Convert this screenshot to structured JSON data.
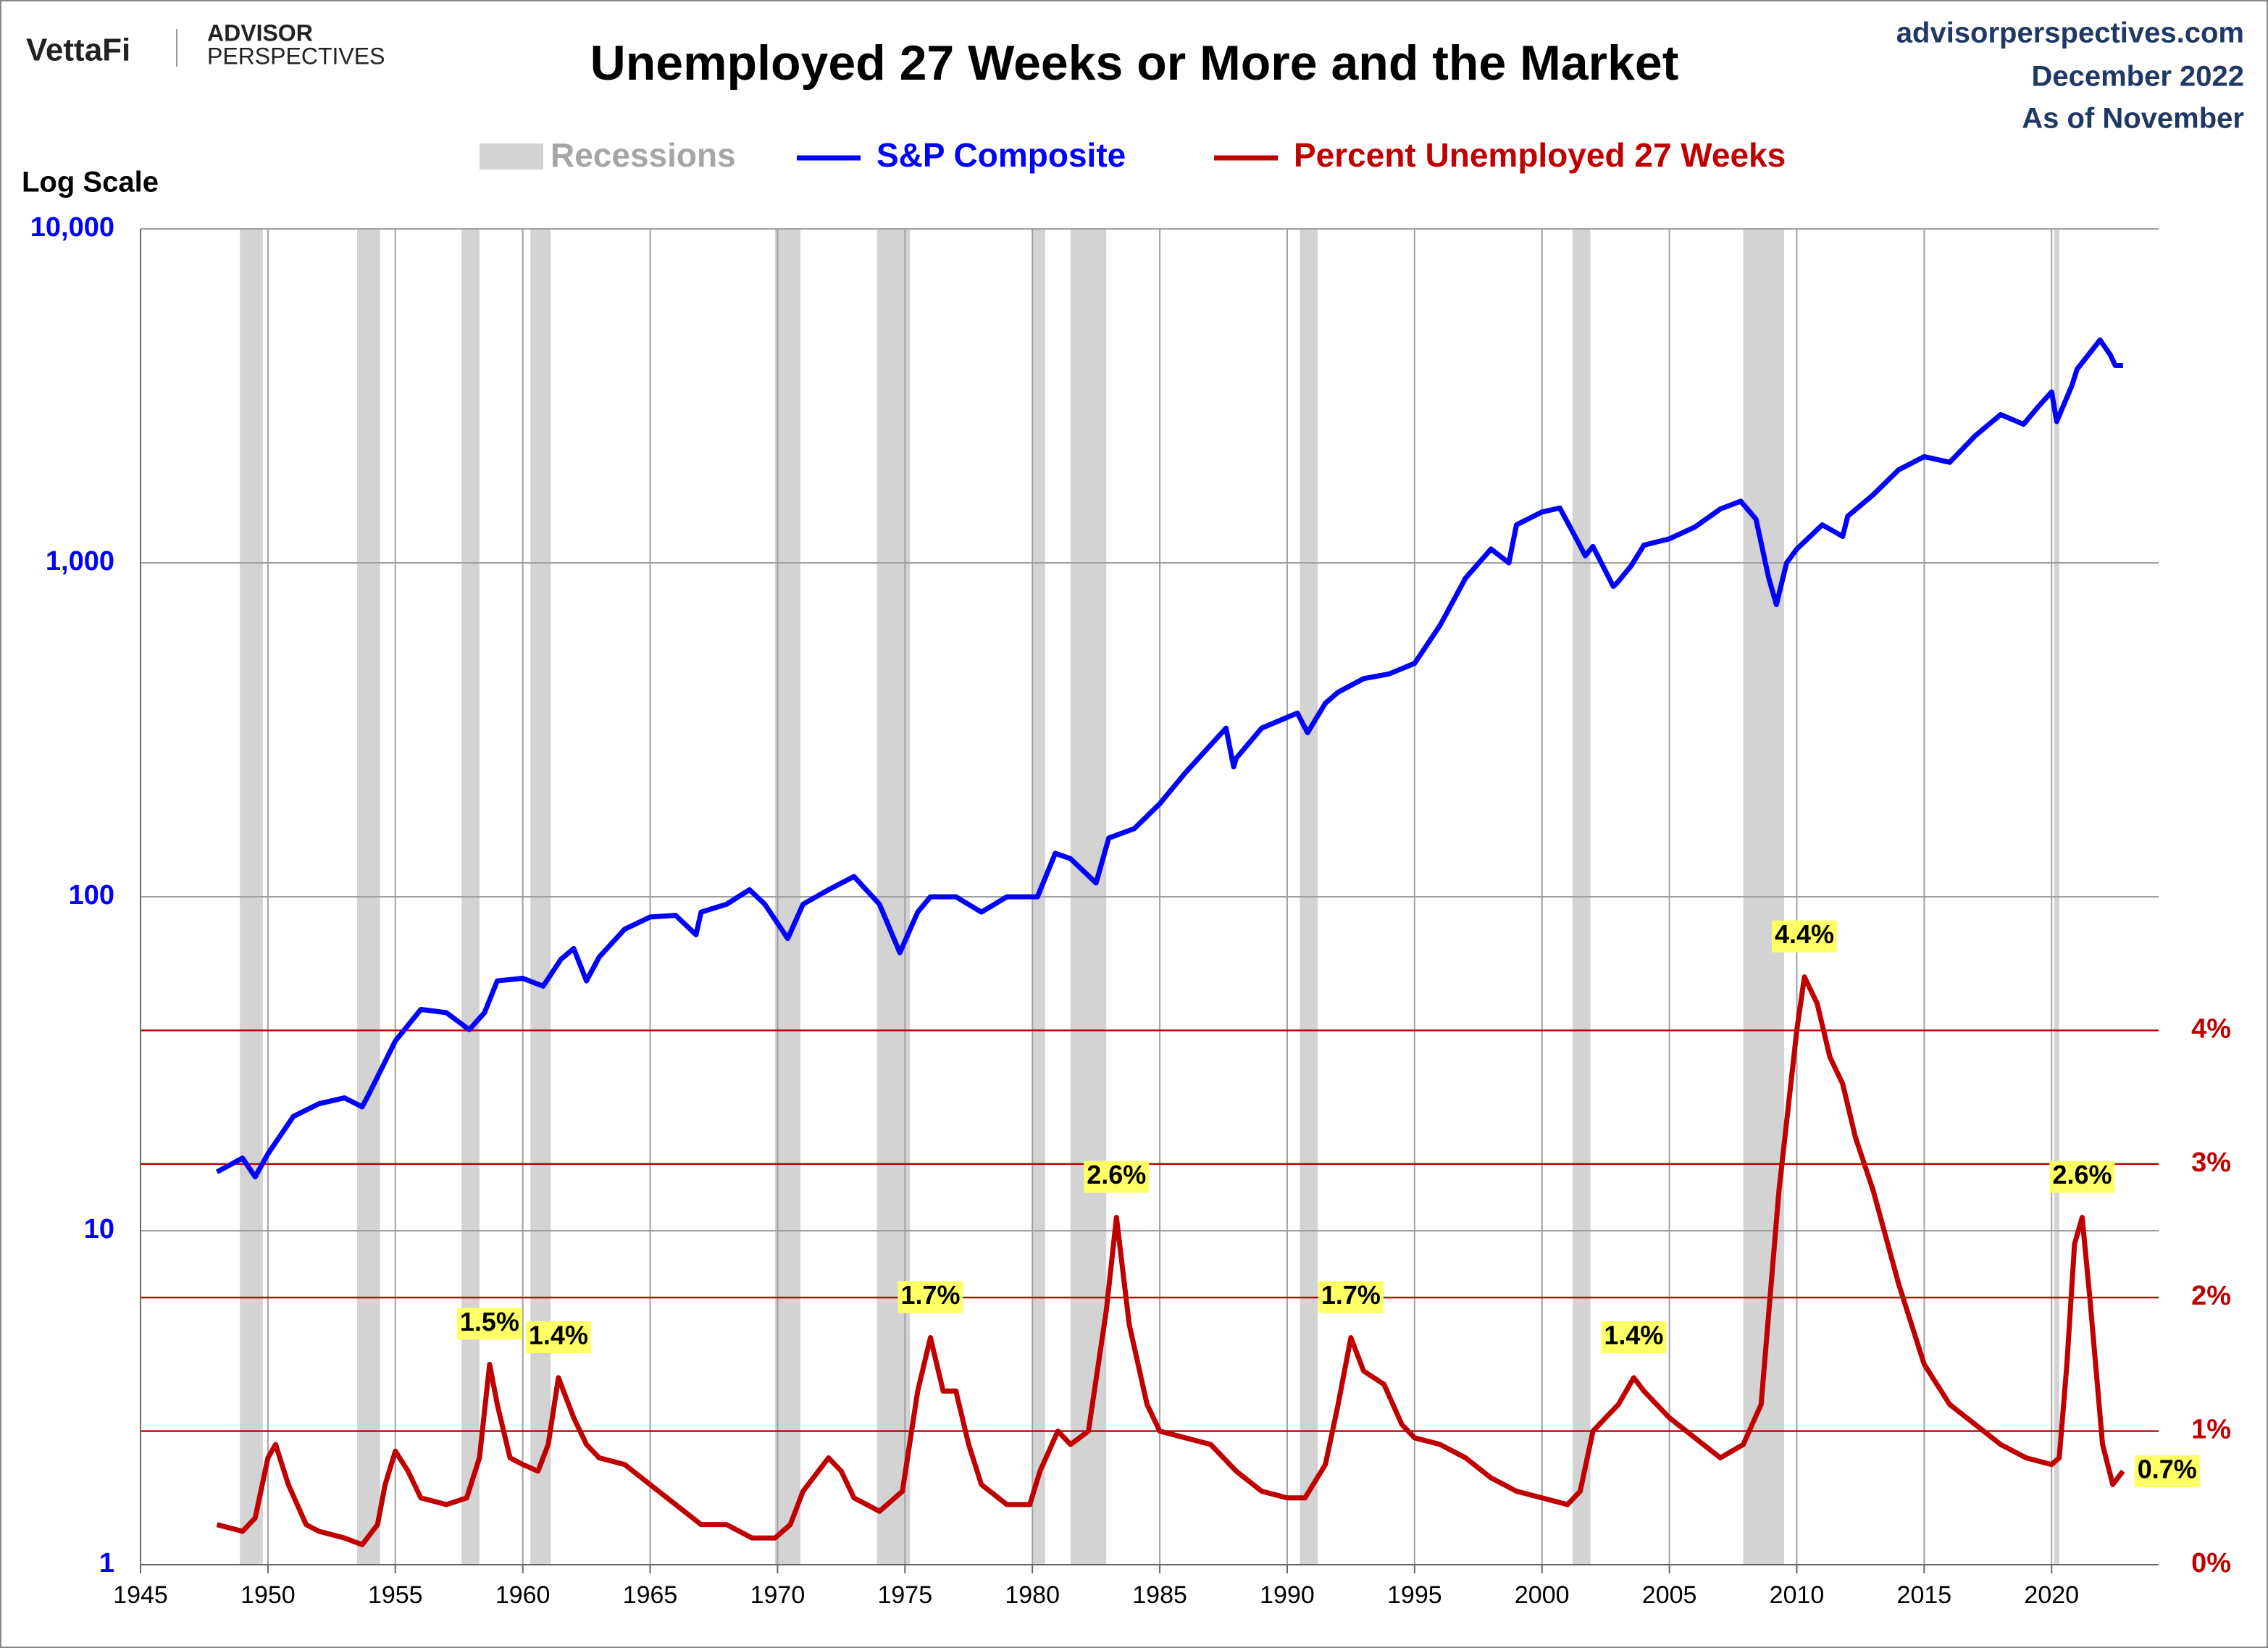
{
  "header": {
    "brand": "VettaFi",
    "brand2_top": "ADVISOR",
    "brand2_bottom": "PERSPECTIVES",
    "site": "advisorperspectives.com",
    "date": "December 2022",
    "as_of": "As of November"
  },
  "chart_data": {
    "type": "line",
    "title": "Unemployed 27 Weeks or More and the Market",
    "y_axis_label": "Log Scale",
    "log_scale": true,
    "grid": true,
    "xlim": [
      1945,
      2024.2
    ],
    "xticks": [
      1945,
      1950,
      1955,
      1960,
      1965,
      1970,
      1975,
      1980,
      1985,
      1990,
      1995,
      2000,
      2005,
      2010,
      2015,
      2020
    ],
    "ylim": [
      1,
      10000
    ],
    "yticks": [
      1,
      10,
      100,
      {
        "value": 1000,
        "label": "1,000"
      },
      {
        "value": 10000,
        "label": "10,000"
      }
    ],
    "y2lim": [
      0,
      10
    ],
    "y2ticks": [
      {
        "value": 0,
        "label": "0%"
      },
      {
        "value": 1,
        "label": "1%"
      },
      {
        "value": 2,
        "label": "2%"
      },
      {
        "value": 3,
        "label": "3%"
      },
      {
        "value": 4,
        "label": "4%"
      }
    ],
    "recessions": {
      "name": "Recessions",
      "color": "#d3d3d3",
      "periods": [
        [
          1948.9,
          1949.8
        ],
        [
          1953.5,
          1954.4
        ],
        [
          1957.6,
          1958.3
        ],
        [
          1960.3,
          1961.1
        ],
        [
          1969.9,
          1970.9
        ],
        [
          1973.9,
          1975.2
        ],
        [
          1980.0,
          1980.5
        ],
        [
          1981.5,
          1982.9
        ],
        [
          1990.5,
          1991.2
        ],
        [
          2001.2,
          2001.9
        ],
        [
          2007.9,
          2009.5
        ],
        [
          2020.1,
          2020.3
        ]
      ]
    },
    "series": [
      {
        "name": "S&P Composite",
        "color": "#0000ff",
        "axis": "y",
        "x": [
          1948,
          1949,
          1949.5,
          1950,
          1951,
          1952,
          1953,
          1953.7,
          1954,
          1955,
          1956,
          1957,
          1957.9,
          1958.5,
          1959,
          1960,
          1960.8,
          1961.5,
          1962,
          1962.5,
          1963,
          1964,
          1965,
          1966,
          1966.8,
          1967,
          1968,
          1968.9,
          1969.5,
          1970.4,
          1971,
          1972,
          1973,
          1974,
          1974.8,
          1975.5,
          1976,
          1977,
          1978,
          1979,
          1980.2,
          1980.9,
          1981.5,
          1982.5,
          1983,
          1984,
          1985,
          1986,
          1987.6,
          1987.9,
          1988,
          1989,
          1990.4,
          1990.8,
          1991.5,
          1992,
          1993,
          1994,
          1995,
          1996,
          1997,
          1998,
          1998.7,
          1999,
          2000,
          2000.7,
          2001.3,
          2001.7,
          2002,
          2002.8,
          2003,
          2003.5,
          2004,
          2005,
          2006,
          2007,
          2007.8,
          2008.4,
          2008.9,
          2009.2,
          2009.6,
          2010,
          2011,
          2011.8,
          2012,
          2013,
          2014,
          2015,
          2016,
          2017,
          2018,
          2018.9,
          2019.5,
          2020,
          2020.2,
          2020.8,
          2021,
          2021.9,
          2022.3,
          2022.5,
          2022.8
        ],
        "values": [
          15,
          16.5,
          14.5,
          17,
          22,
          24,
          25,
          23.5,
          26,
          37,
          46,
          45,
          40,
          45,
          56,
          57,
          54,
          65,
          70,
          56,
          66,
          80,
          87,
          88,
          77,
          90,
          95,
          105,
          95,
          75,
          95,
          105,
          115,
          95,
          68,
          90,
          100,
          100,
          90,
          100,
          100,
          135,
          130,
          110,
          150,
          160,
          190,
          235,
          320,
          245,
          260,
          320,
          355,
          310,
          380,
          410,
          450,
          465,
          500,
          650,
          900,
          1100,
          1000,
          1300,
          1420,
          1460,
          1200,
          1050,
          1120,
          850,
          880,
          980,
          1130,
          1180,
          1280,
          1450,
          1530,
          1350,
          900,
          750,
          1000,
          1100,
          1300,
          1200,
          1380,
          1600,
          1900,
          2080,
          2000,
          2400,
          2780,
          2600,
          2950,
          3250,
          2650,
          3400,
          3800,
          4650,
          4200,
          3900,
          3900
        ]
      },
      {
        "name": "Percent Unemployed 27 Weeks",
        "color": "#c00000",
        "axis": "y2",
        "x": [
          1948,
          1949,
          1949.5,
          1950,
          1950.3,
          1950.8,
          1951.5,
          1952,
          1953,
          1953.7,
          1954.3,
          1954.6,
          1955,
          1955.5,
          1956,
          1957,
          1957.8,
          1958.3,
          1958.7,
          1959,
          1959.5,
          1960,
          1960.6,
          1961,
          1961.4,
          1962,
          1962.5,
          1963,
          1964,
          1965,
          1966,
          1967,
          1968,
          1969,
          1969.9,
          1970.5,
          1971,
          1972,
          1972.5,
          1973,
          1974,
          1974.9,
          1975.5,
          1976,
          1976.5,
          1977,
          1977.5,
          1978,
          1979,
          1979.9,
          1980.3,
          1981,
          1981.5,
          1982.2,
          1982.9,
          1983.3,
          1983.8,
          1984.5,
          1985,
          1986,
          1987,
          1988,
          1989,
          1990,
          1990.7,
          1991.5,
          1992,
          1992.5,
          1993,
          1993.8,
          1994.5,
          1995,
          1996,
          1997,
          1998,
          1999,
          2000,
          2001,
          2001.5,
          2002,
          2003,
          2003.6,
          2004,
          2005,
          2006,
          2007,
          2007.9,
          2008.6,
          2009.3,
          2010,
          2010.3,
          2010.8,
          2011.3,
          2011.8,
          2012.3,
          2013,
          2014,
          2015,
          2016,
          2017,
          2018,
          2019,
          2020,
          2020.3,
          2020.6,
          2020.9,
          2021.2,
          2021.5,
          2022,
          2022.4,
          2022.8
        ],
        "values": [
          0.3,
          0.25,
          0.35,
          0.8,
          0.9,
          0.6,
          0.3,
          0.25,
          0.2,
          0.15,
          0.3,
          0.6,
          0.85,
          0.7,
          0.5,
          0.45,
          0.5,
          0.8,
          1.5,
          1.2,
          0.8,
          0.75,
          0.7,
          0.9,
          1.4,
          1.1,
          0.9,
          0.8,
          0.75,
          0.6,
          0.45,
          0.3,
          0.3,
          0.2,
          0.2,
          0.3,
          0.55,
          0.8,
          0.7,
          0.5,
          0.4,
          0.55,
          1.3,
          1.7,
          1.3,
          1.3,
          0.9,
          0.6,
          0.45,
          0.45,
          0.7,
          1.0,
          0.9,
          1.0,
          1.9,
          2.6,
          1.8,
          1.2,
          1.0,
          0.95,
          0.9,
          0.7,
          0.55,
          0.5,
          0.5,
          0.75,
          1.2,
          1.7,
          1.45,
          1.35,
          1.05,
          0.95,
          0.9,
          0.8,
          0.65,
          0.55,
          0.5,
          0.45,
          0.55,
          1.0,
          1.2,
          1.4,
          1.3,
          1.1,
          0.95,
          0.8,
          0.9,
          1.2,
          2.8,
          4.0,
          4.4,
          4.2,
          3.8,
          3.6,
          3.2,
          2.8,
          2.1,
          1.5,
          1.2,
          1.05,
          0.9,
          0.8,
          0.75,
          0.8,
          1.5,
          2.4,
          2.6,
          2.0,
          0.9,
          0.6,
          0.7
        ]
      }
    ],
    "annotations": [
      {
        "x": 1958.7,
        "y": 1.5,
        "text": "1.5%"
      },
      {
        "x": 1961.4,
        "y": 1.4,
        "text": "1.4%"
      },
      {
        "x": 1976,
        "y": 1.7,
        "text": "1.7%"
      },
      {
        "x": 1983.3,
        "y": 2.6,
        "text": "2.6%"
      },
      {
        "x": 1992.5,
        "y": 1.7,
        "text": "1.7%"
      },
      {
        "x": 2003.6,
        "y": 1.4,
        "text": "1.4%"
      },
      {
        "x": 2010.3,
        "y": 4.4,
        "text": "4.4%"
      },
      {
        "x": 2021.2,
        "y": 2.6,
        "text": "2.6%"
      },
      {
        "x": 2022.8,
        "y": 0.7,
        "text": "0.7%"
      }
    ]
  }
}
